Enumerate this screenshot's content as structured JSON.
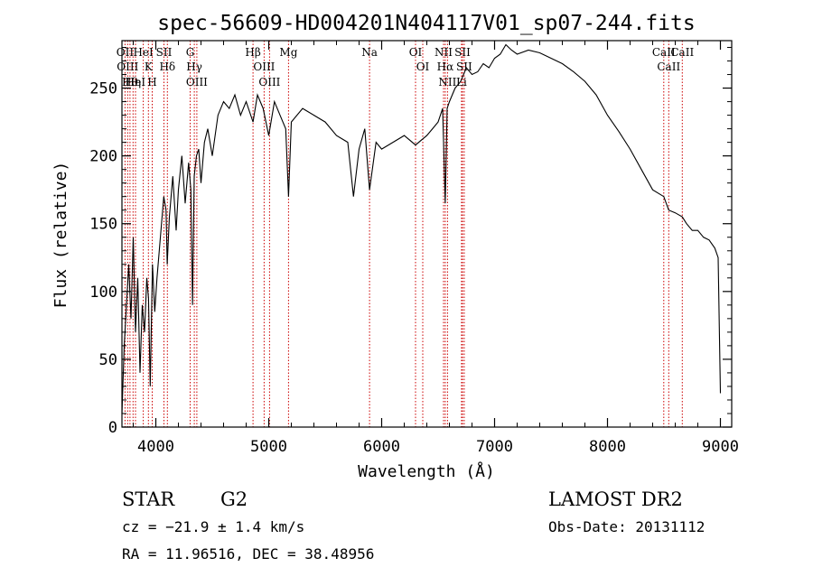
{
  "chart_data": {
    "type": "line",
    "title": "spec-56609-HD004201N404117V01_sp07-244.fits",
    "xlabel": "Wavelength (Å)",
    "ylabel": "Flux (relative)",
    "xlim": [
      3700,
      9100
    ],
    "ylim": [
      0,
      285
    ],
    "xticks": [
      4000,
      5000,
      6000,
      7000,
      8000,
      9000
    ],
    "yticks": [
      0,
      50,
      100,
      150,
      200,
      250
    ],
    "grid": false,
    "line_color": "#000000",
    "marker_color": "#cc0000",
    "spectrum": {
      "x": [
        3700,
        3720,
        3740,
        3760,
        3780,
        3800,
        3820,
        3840,
        3860,
        3880,
        3900,
        3920,
        3935,
        3950,
        3970,
        3990,
        4010,
        4030,
        4050,
        4070,
        4090,
        4101,
        4120,
        4150,
        4180,
        4200,
        4230,
        4260,
        4290,
        4310,
        4325,
        4340,
        4360,
        4380,
        4400,
        4430,
        4460,
        4500,
        4550,
        4600,
        4650,
        4700,
        4750,
        4800,
        4861,
        4900,
        4950,
        5000,
        5050,
        5100,
        5150,
        5175,
        5200,
        5300,
        5400,
        5500,
        5600,
        5700,
        5750,
        5800,
        5850,
        5893,
        5950,
        6000,
        6100,
        6200,
        6300,
        6400,
        6450,
        6500,
        6540,
        6563,
        6580,
        6600,
        6650,
        6700,
        6750,
        6800,
        6850,
        6900,
        6950,
        7000,
        7050,
        7100,
        7150,
        7200,
        7300,
        7400,
        7500,
        7600,
        7700,
        7800,
        7900,
        8000,
        8100,
        8200,
        8300,
        8400,
        8498,
        8542,
        8600,
        8662,
        8700,
        8750,
        8800,
        8850,
        8900,
        8950,
        8980,
        9000
      ],
      "y": [
        10,
        60,
        90,
        120,
        80,
        140,
        70,
        110,
        40,
        90,
        70,
        110,
        95,
        30,
        120,
        85,
        110,
        130,
        150,
        170,
        160,
        120,
        155,
        185,
        145,
        175,
        200,
        165,
        195,
        175,
        90,
        185,
        200,
        205,
        180,
        210,
        220,
        200,
        230,
        240,
        235,
        245,
        230,
        240,
        225,
        245,
        235,
        215,
        240,
        230,
        220,
        170,
        225,
        235,
        230,
        225,
        215,
        210,
        170,
        205,
        220,
        175,
        210,
        205,
        210,
        215,
        208,
        215,
        220,
        225,
        235,
        165,
        235,
        240,
        250,
        255,
        265,
        260,
        262,
        268,
        265,
        272,
        275,
        282,
        278,
        275,
        278,
        276,
        272,
        268,
        262,
        255,
        245,
        230,
        218,
        205,
        190,
        175,
        170,
        160,
        158,
        155,
        150,
        145,
        145,
        140,
        138,
        132,
        125,
        25
      ]
    },
    "lines": [
      {
        "wavelength": 3727,
        "label": "OII"
      },
      {
        "wavelength": 3750,
        "label": "OIII"
      },
      {
        "wavelength": 3771,
        "label": "Hθ"
      },
      {
        "wavelength": 3798,
        "label": "Hη"
      },
      {
        "wavelength": 3820,
        "label": "HeI"
      },
      {
        "wavelength": 3889,
        "label": "HeI"
      },
      {
        "wavelength": 3934,
        "label": "K"
      },
      {
        "wavelength": 3968,
        "label": "H"
      },
      {
        "wavelength": 4072,
        "label": "SII"
      },
      {
        "wavelength": 4102,
        "label": "Hδ"
      },
      {
        "wavelength": 4304,
        "label": "G"
      },
      {
        "wavelength": 4341,
        "label": "Hγ"
      },
      {
        "wavelength": 4363,
        "label": "OIII"
      },
      {
        "wavelength": 4861,
        "label": "Hβ"
      },
      {
        "wavelength": 4959,
        "label": "OIII"
      },
      {
        "wavelength": 5007,
        "label": "OIII"
      },
      {
        "wavelength": 5175,
        "label": "Mg"
      },
      {
        "wavelength": 5893,
        "label": "Na"
      },
      {
        "wavelength": 6300,
        "label": "OI"
      },
      {
        "wavelength": 6364,
        "label": "OI"
      },
      {
        "wavelength": 6548,
        "label": "NII"
      },
      {
        "wavelength": 6563,
        "label": "Hα"
      },
      {
        "wavelength": 6583,
        "label": "NII"
      },
      {
        "wavelength": 6707,
        "label": "Li"
      },
      {
        "wavelength": 6716,
        "label": "SII"
      },
      {
        "wavelength": 6731,
        "label": "SII"
      },
      {
        "wavelength": 8498,
        "label": "CaII"
      },
      {
        "wavelength": 8542,
        "label": "CaII"
      },
      {
        "wavelength": 8662,
        "label": "CaII"
      }
    ]
  },
  "info": {
    "class": "STAR",
    "subclass": "G2",
    "survey": "LAMOST DR2",
    "cz": "cz = −21.9 ± 1.4 km/s",
    "obs_date": "Obs-Date: 20131112",
    "coords": "RA =  11.96516, DEC =  38.48956"
  }
}
